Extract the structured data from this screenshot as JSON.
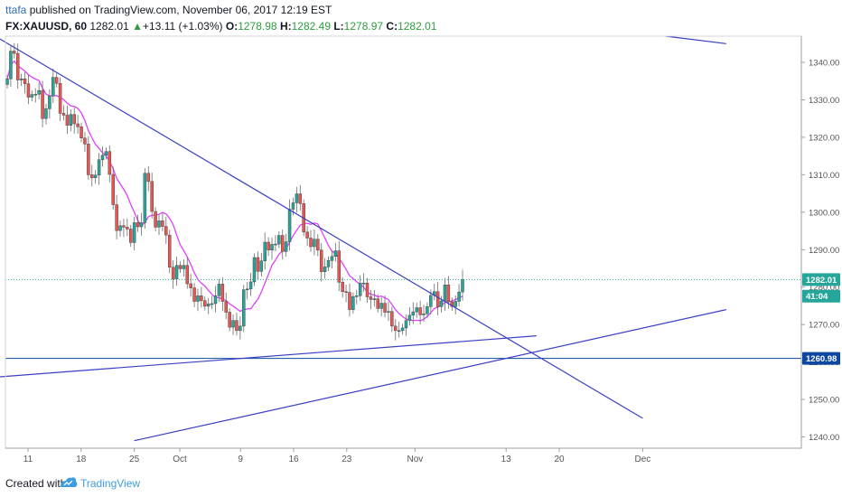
{
  "header": {
    "author": "ttafa",
    "published_text": "published on TradingView.com, November 06, 2017 12:19 EST",
    "symbol": "FX:XAUUSD, 60",
    "last": "1282.01",
    "change_arrow": "▲",
    "change": "+13.11 (+1.03%)",
    "open_label": "O:",
    "open": "1278.98",
    "high_label": "H:",
    "high": "1282.49",
    "low_label": "L:",
    "low": "1278.97",
    "close_label": "C:",
    "close": "1282.01"
  },
  "footer": {
    "created_with": "Created with",
    "brand": "TradingView"
  },
  "chart_data": {
    "type": "candlestick",
    "symbol": "FX:XAUUSD",
    "interval": "60",
    "ylim": [
      1237,
      1347
    ],
    "y_ticks": [
      1240.0,
      1250.0,
      1260.0,
      1270.0,
      1280.0,
      1290.0,
      1300.0,
      1310.0,
      1320.0,
      1330.0,
      1340.0
    ],
    "x_ticks": [
      "11",
      "18",
      "25",
      "Oct",
      "9",
      "16",
      "23",
      "Nov",
      "13",
      "20",
      "Dec"
    ],
    "price_labels": [
      {
        "text": "1282.01",
        "price": 1282.01,
        "color": "#26a69a"
      },
      {
        "text": "41:04",
        "price": 1277.6,
        "color": "#26a69a"
      },
      {
        "text": "1260.98",
        "price": 1260.98,
        "color": "#0d47a1"
      }
    ],
    "horizontal_lines": [
      {
        "price": 1260.98,
        "style": "solid",
        "color": "#0d47a1"
      },
      {
        "price": 1282.01,
        "style": "dotted",
        "color": "#26a69a"
      }
    ],
    "trendlines": [
      {
        "from": [
          "Sep 5",
          1349
        ],
        "to": [
          "Dec 1",
          1245
        ],
        "color": "#3a3fc4"
      },
      {
        "from": [
          "Sep 7",
          1256
        ],
        "to": [
          "Nov 17",
          1267
        ],
        "color": "#3a3fc4"
      },
      {
        "from": [
          "Sep 25",
          1239
        ],
        "to": [
          "Dec 12",
          1274
        ],
        "color": "#3a3fc4"
      },
      {
        "from": [
          "Dec 4",
          1347
        ],
        "to": [
          "Dec 12",
          1345
        ],
        "color": "#3a3fc4"
      }
    ],
    "moving_average_color": "#e040fb",
    "candles_close": [
      1335.6,
      1343.0,
      1342.4,
      1335.3,
      1335.6,
      1334.3,
      1330.7,
      1331.4,
      1331.5,
      1332.5,
      1325.0,
      1327.6,
      1331.0,
      1336.0,
      1334.4,
      1326.4,
      1325.9,
      1323.2,
      1326.1,
      1323.6,
      1322.8,
      1319.8,
      1318.2,
      1310.0,
      1309.2,
      1309.9,
      1314.0,
      1315.2,
      1316.2,
      1310.1,
      1302.0,
      1295.1,
      1296.4,
      1296.0,
      1295.5,
      1291.9,
      1297.2,
      1296.1,
      1297.2,
      1310.4,
      1308.2,
      1300.2,
      1296.0,
      1297.7,
      1296.2,
      1293.9,
      1285.3,
      1282.2,
      1285.8,
      1284.9,
      1285.8,
      1280.9,
      1279.8,
      1276.2,
      1277.7,
      1276.4,
      1274.9,
      1275.5,
      1275.6,
      1277.7,
      1280.8,
      1276.2,
      1273.3,
      1269.3,
      1271.1,
      1268.4,
      1269.6,
      1279.3,
      1279.5,
      1281.4,
      1287.9,
      1284.2,
      1287.0,
      1292.0,
      1289.9,
      1291.4,
      1291.5,
      1293.8,
      1289.5,
      1292.1,
      1300.8,
      1302.5,
      1304.9,
      1302.3,
      1294.7,
      1293.1,
      1290.8,
      1292.8,
      1289.9,
      1284.1,
      1285.4,
      1287.1,
      1288.2,
      1289.7,
      1281.3,
      1278.8,
      1278.6,
      1274.0,
      1277.5,
      1277.7,
      1281.1,
      1281.1,
      1277.4,
      1276.7,
      1276.9,
      1274.3,
      1275.7,
      1273.3,
      1273.5,
      1269.6,
      1268.4,
      1268.4,
      1269.1,
      1271.1,
      1272.5,
      1273.4,
      1274.5,
      1272.6,
      1272.9,
      1274.8,
      1277.8,
      1278.8,
      1274.8,
      1276.3,
      1280.6,
      1276.1,
      1274.8,
      1276.2,
      1278.7,
      1282.0
    ]
  }
}
